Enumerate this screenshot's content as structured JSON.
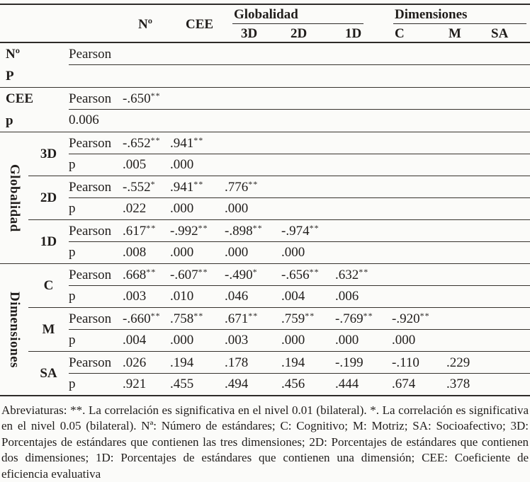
{
  "table": {
    "header": {
      "n": "Nº",
      "cee": "CEE",
      "globalidad": "Globalidad",
      "dimensiones": "Dimensiones",
      "sub": [
        "3D",
        "2D",
        "1D",
        "C",
        "M",
        "SA"
      ]
    },
    "groups": {
      "globalidad": "Globalidad",
      "dimensiones": "Dimensiones"
    },
    "blocks": [
      {
        "label": "Nº",
        "label2": "P",
        "rows": [
          {
            "stat": "Pearson",
            "cells": []
          },
          {
            "stat": "",
            "cells": []
          }
        ]
      },
      {
        "label": "CEE",
        "label2": "p",
        "rows": [
          {
            "stat": "Pearson",
            "cells": [
              {
                "v": "-.650",
                "s": "**"
              }
            ]
          },
          {
            "stat": "0.006",
            "cells": []
          }
        ]
      },
      {
        "label": "3D",
        "rows": [
          {
            "stat": "Pearson",
            "cells": [
              {
                "v": "-.652",
                "s": "**"
              },
              {
                "v": ".941",
                "s": "**"
              }
            ]
          },
          {
            "stat": "p",
            "cells": [
              {
                "v": ".005"
              },
              {
                "v": ".000"
              }
            ]
          }
        ]
      },
      {
        "label": "2D",
        "rows": [
          {
            "stat": "Pearson",
            "cells": [
              {
                "v": "-.552",
                "s": "*"
              },
              {
                "v": ".941",
                "s": "**"
              },
              {
                "v": ".776",
                "s": "**"
              }
            ]
          },
          {
            "stat": "p",
            "cells": [
              {
                "v": ".022"
              },
              {
                "v": ".000"
              },
              {
                "v": ".000"
              }
            ]
          }
        ]
      },
      {
        "label": "1D",
        "rows": [
          {
            "stat": "Pearson",
            "cells": [
              {
                "v": ".617",
                "s": "**"
              },
              {
                "v": "-.992",
                "s": "**"
              },
              {
                "v": "-.898",
                "s": "**"
              },
              {
                "v": "-.974",
                "s": "**"
              }
            ]
          },
          {
            "stat": "p",
            "cells": [
              {
                "v": ".008"
              },
              {
                "v": ".000"
              },
              {
                "v": ".000"
              },
              {
                "v": ".000"
              }
            ]
          }
        ]
      },
      {
        "label": "C",
        "rows": [
          {
            "stat": "Pearson",
            "cells": [
              {
                "v": ".668",
                "s": "**"
              },
              {
                "v": "-.607",
                "s": "**"
              },
              {
                "v": "-.490",
                "s": "*"
              },
              {
                "v": "-.656",
                "s": "**"
              },
              {
                "v": ".632",
                "s": "**"
              }
            ]
          },
          {
            "stat": "p",
            "cells": [
              {
                "v": ".003"
              },
              {
                "v": ".010"
              },
              {
                "v": ".046"
              },
              {
                "v": ".004"
              },
              {
                "v": ".006"
              }
            ]
          }
        ]
      },
      {
        "label": "M",
        "rows": [
          {
            "stat": "Pearson",
            "cells": [
              {
                "v": "-.660",
                "s": "**"
              },
              {
                "v": ".758",
                "s": "**"
              },
              {
                "v": ".671",
                "s": "**"
              },
              {
                "v": ".759",
                "s": "**"
              },
              {
                "v": "-.769",
                "s": "**"
              },
              {
                "v": "-.920",
                "s": "**"
              }
            ]
          },
          {
            "stat": "p",
            "cells": [
              {
                "v": ".004"
              },
              {
                "v": ".000"
              },
              {
                "v": ".003"
              },
              {
                "v": ".000"
              },
              {
                "v": ".000"
              },
              {
                "v": ".000"
              }
            ]
          }
        ]
      },
      {
        "label": "SA",
        "rows": [
          {
            "stat": "Pearson",
            "cells": [
              {
                "v": ".026"
              },
              {
                "v": ".194"
              },
              {
                "v": ".178"
              },
              {
                "v": ".194"
              },
              {
                "v": "-.199"
              },
              {
                "v": "-.110"
              },
              {
                "v": ".229"
              }
            ]
          },
          {
            "stat": "p",
            "cells": [
              {
                "v": ".921"
              },
              {
                "v": ".455"
              },
              {
                "v": ".494"
              },
              {
                "v": ".456"
              },
              {
                "v": ".444"
              },
              {
                "v": ".674"
              },
              {
                "v": ".378"
              }
            ]
          }
        ]
      }
    ]
  },
  "footnote": "Abreviaturas: **. La correlación es significativa en el nivel 0.01 (bilateral). *. La correlación es significativa en el nivel 0.05 (bilateral). Nª: Número de estándares; C: Cognitivo; M: Motriz; SA: Socioafectivo; 3D: Porcentajes de estándares que contienen las tres dimensiones; 2D: Porcentajes de estándares que contienen dos dimensiones; 1D: Porcentajes de estándares que contienen una dimensión; CEE: Coeficiente de eficiencia evaluativa"
}
